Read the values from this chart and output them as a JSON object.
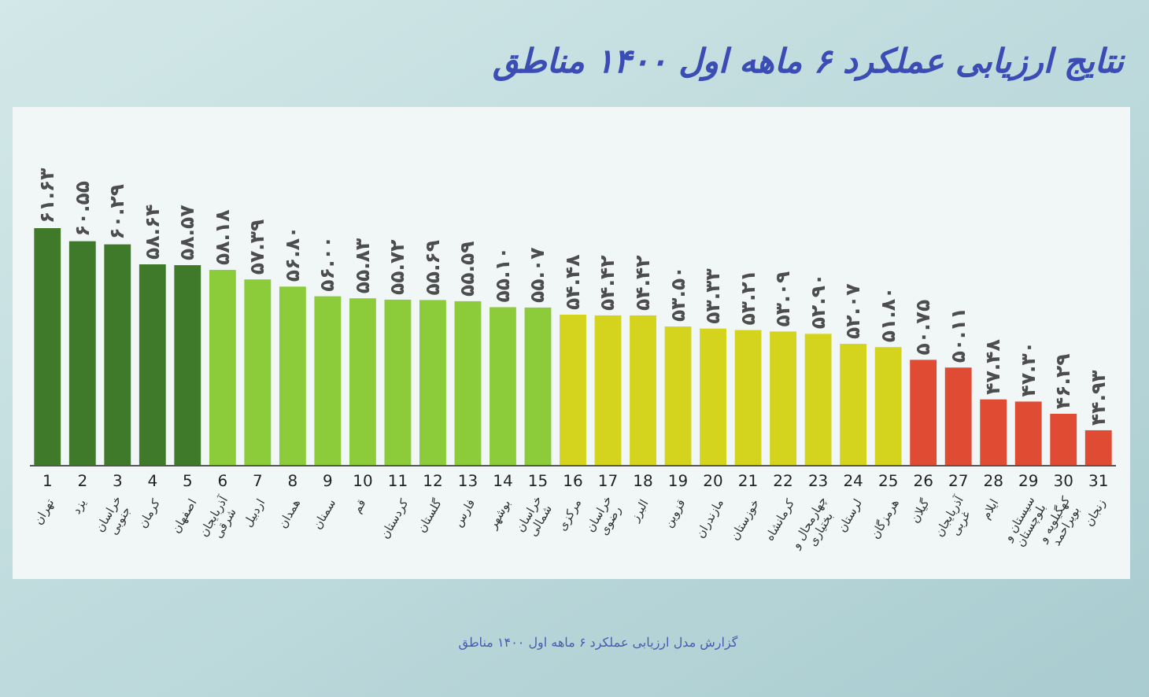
{
  "chart_data": {
    "type": "bar",
    "title": "نتایج ارزیابی عملکرد ۶ ماهه اول ۱۴۰۰ مناطق",
    "categories": [
      "1\nتهران",
      "2\nیزد",
      "3\nخراسان\nجنوبی",
      "4\nکرمان",
      "5\nاصفهان",
      "6\nآذربایجان\nشرقی",
      "7\nاردبیل",
      "8\nهمدان",
      "9\nسمنان",
      "10\nقم",
      "11\nکردستان",
      "12\nگلستان",
      "13\nفارس",
      "14\nبوشهر",
      "15\nخراسان\nشمالی",
      "16\nمرکزی",
      "17\nخراسان\nرضوی",
      "18\nالبرز",
      "19\nقزوین",
      "20\nمازندران",
      "21\nخوزستان",
      "22\nکرمانشاه",
      "23\nچهارمحال و\nبختیاری",
      "24\nلرستان",
      "25\nهرمزگان",
      "26\nگیلان",
      "27\nآذربایجان\nغربی",
      "28\nایلام",
      "29\nسیستان و\nبلوچستان",
      "30\nکهگیلویه و\nبویراحمد",
      "31\nزنجان"
    ],
    "values": [
      61.63,
      60.55,
      60.29,
      58.64,
      58.57,
      58.18,
      57.39,
      56.8,
      56.0,
      55.83,
      55.72,
      55.69,
      55.59,
      55.1,
      55.07,
      54.48,
      54.42,
      54.42,
      53.5,
      53.33,
      53.21,
      53.09,
      52.9,
      52.07,
      51.8,
      50.75,
      50.11,
      47.48,
      47.3,
      46.29,
      44.93
    ],
    "value_labels": [
      "۶۱.۶۳",
      "۶۰.۵۵",
      "۶۰.۲۹",
      "۵۸.۶۴",
      "۵۸.۵۷",
      "۵۸.۱۸",
      "۵۷.۳۹",
      "۵۶.۸۰",
      "۵۶.۰۰",
      "۵۵.۸۳",
      "۵۵.۷۲",
      "۵۵.۶۹",
      "۵۵.۵۹",
      "۵۵.۱۰",
      "۵۵.۰۷",
      "۵۴.۴۸",
      "۵۴.۴۲",
      "۵۴.۴۲",
      "۵۳.۵۰",
      "۵۳.۳۳",
      "۵۳.۲۱",
      "۵۳.۰۹",
      "۵۲.۹۰",
      "۵۲.۰۷",
      "۵۱.۸۰",
      "۵۰.۷۵",
      "۵۰.۱۱",
      "۴۷.۴۸",
      "۴۷.۳۰",
      "۴۶.۲۹",
      "۴۴.۹۳"
    ],
    "colors": [
      "#3f7a2a",
      "#3f7a2a",
      "#3f7a2a",
      "#3f7a2a",
      "#3f7a2a",
      "#8ccb3a",
      "#8ccb3a",
      "#8ccb3a",
      "#8ccb3a",
      "#8ccb3a",
      "#8ccb3a",
      "#8ccb3a",
      "#8ccb3a",
      "#8ccb3a",
      "#8ccb3a",
      "#d4d41e",
      "#d4d41e",
      "#d4d41e",
      "#d4d41e",
      "#d4d41e",
      "#d4d41e",
      "#d4d41e",
      "#d4d41e",
      "#d4d41e",
      "#d4d41e",
      "#e04b33",
      "#e04b33",
      "#e04b33",
      "#e04b33",
      "#e04b33",
      "#e04b33"
    ],
    "ylim": [
      42,
      61.63
    ],
    "tick_labels": "x",
    "annotations": [
      "گزارش مدل ارزیابی عملکرد ۶ ماهه اول ۱۴۰۰ مناطق"
    ]
  }
}
